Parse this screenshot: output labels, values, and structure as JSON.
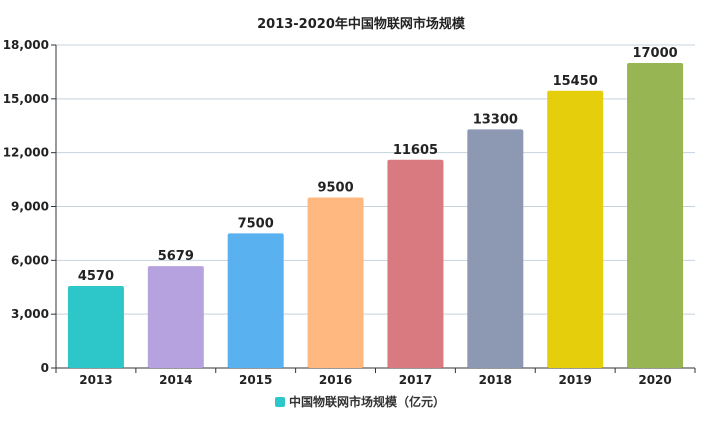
{
  "chart_data": {
    "type": "bar",
    "title": "2013-2020年中国物联网市场规模",
    "categories": [
      "2013",
      "2014",
      "2015",
      "2016",
      "2017",
      "2018",
      "2019",
      "2020"
    ],
    "series": [
      {
        "name": "中国物联网市场规模（亿元）",
        "values": [
          4570,
          5679,
          7500,
          9500,
          11605,
          13300,
          15450,
          17000
        ]
      }
    ],
    "value_labels": [
      "4570",
      "5679",
      "7500",
      "9500",
      "11605",
      "13300",
      "15450",
      "17000"
    ],
    "colors": [
      "#2ec7c9",
      "#b6a2de",
      "#5ab1ef",
      "#ffb980",
      "#d87a80",
      "#8d98b3",
      "#e5cf0d",
      "#97b552"
    ],
    "legend_color": "#2ec7c9",
    "ylim": [
      0,
      18000
    ],
    "yticks": [
      0,
      3000,
      6000,
      9000,
      12000,
      15000,
      18000
    ],
    "ytick_labels": [
      "0",
      "3,000",
      "6,000",
      "9,000",
      "12,000",
      "15,000",
      "18,000"
    ],
    "grid": true,
    "legend_position": "bottom-center",
    "xlabel": "",
    "ylabel": ""
  }
}
